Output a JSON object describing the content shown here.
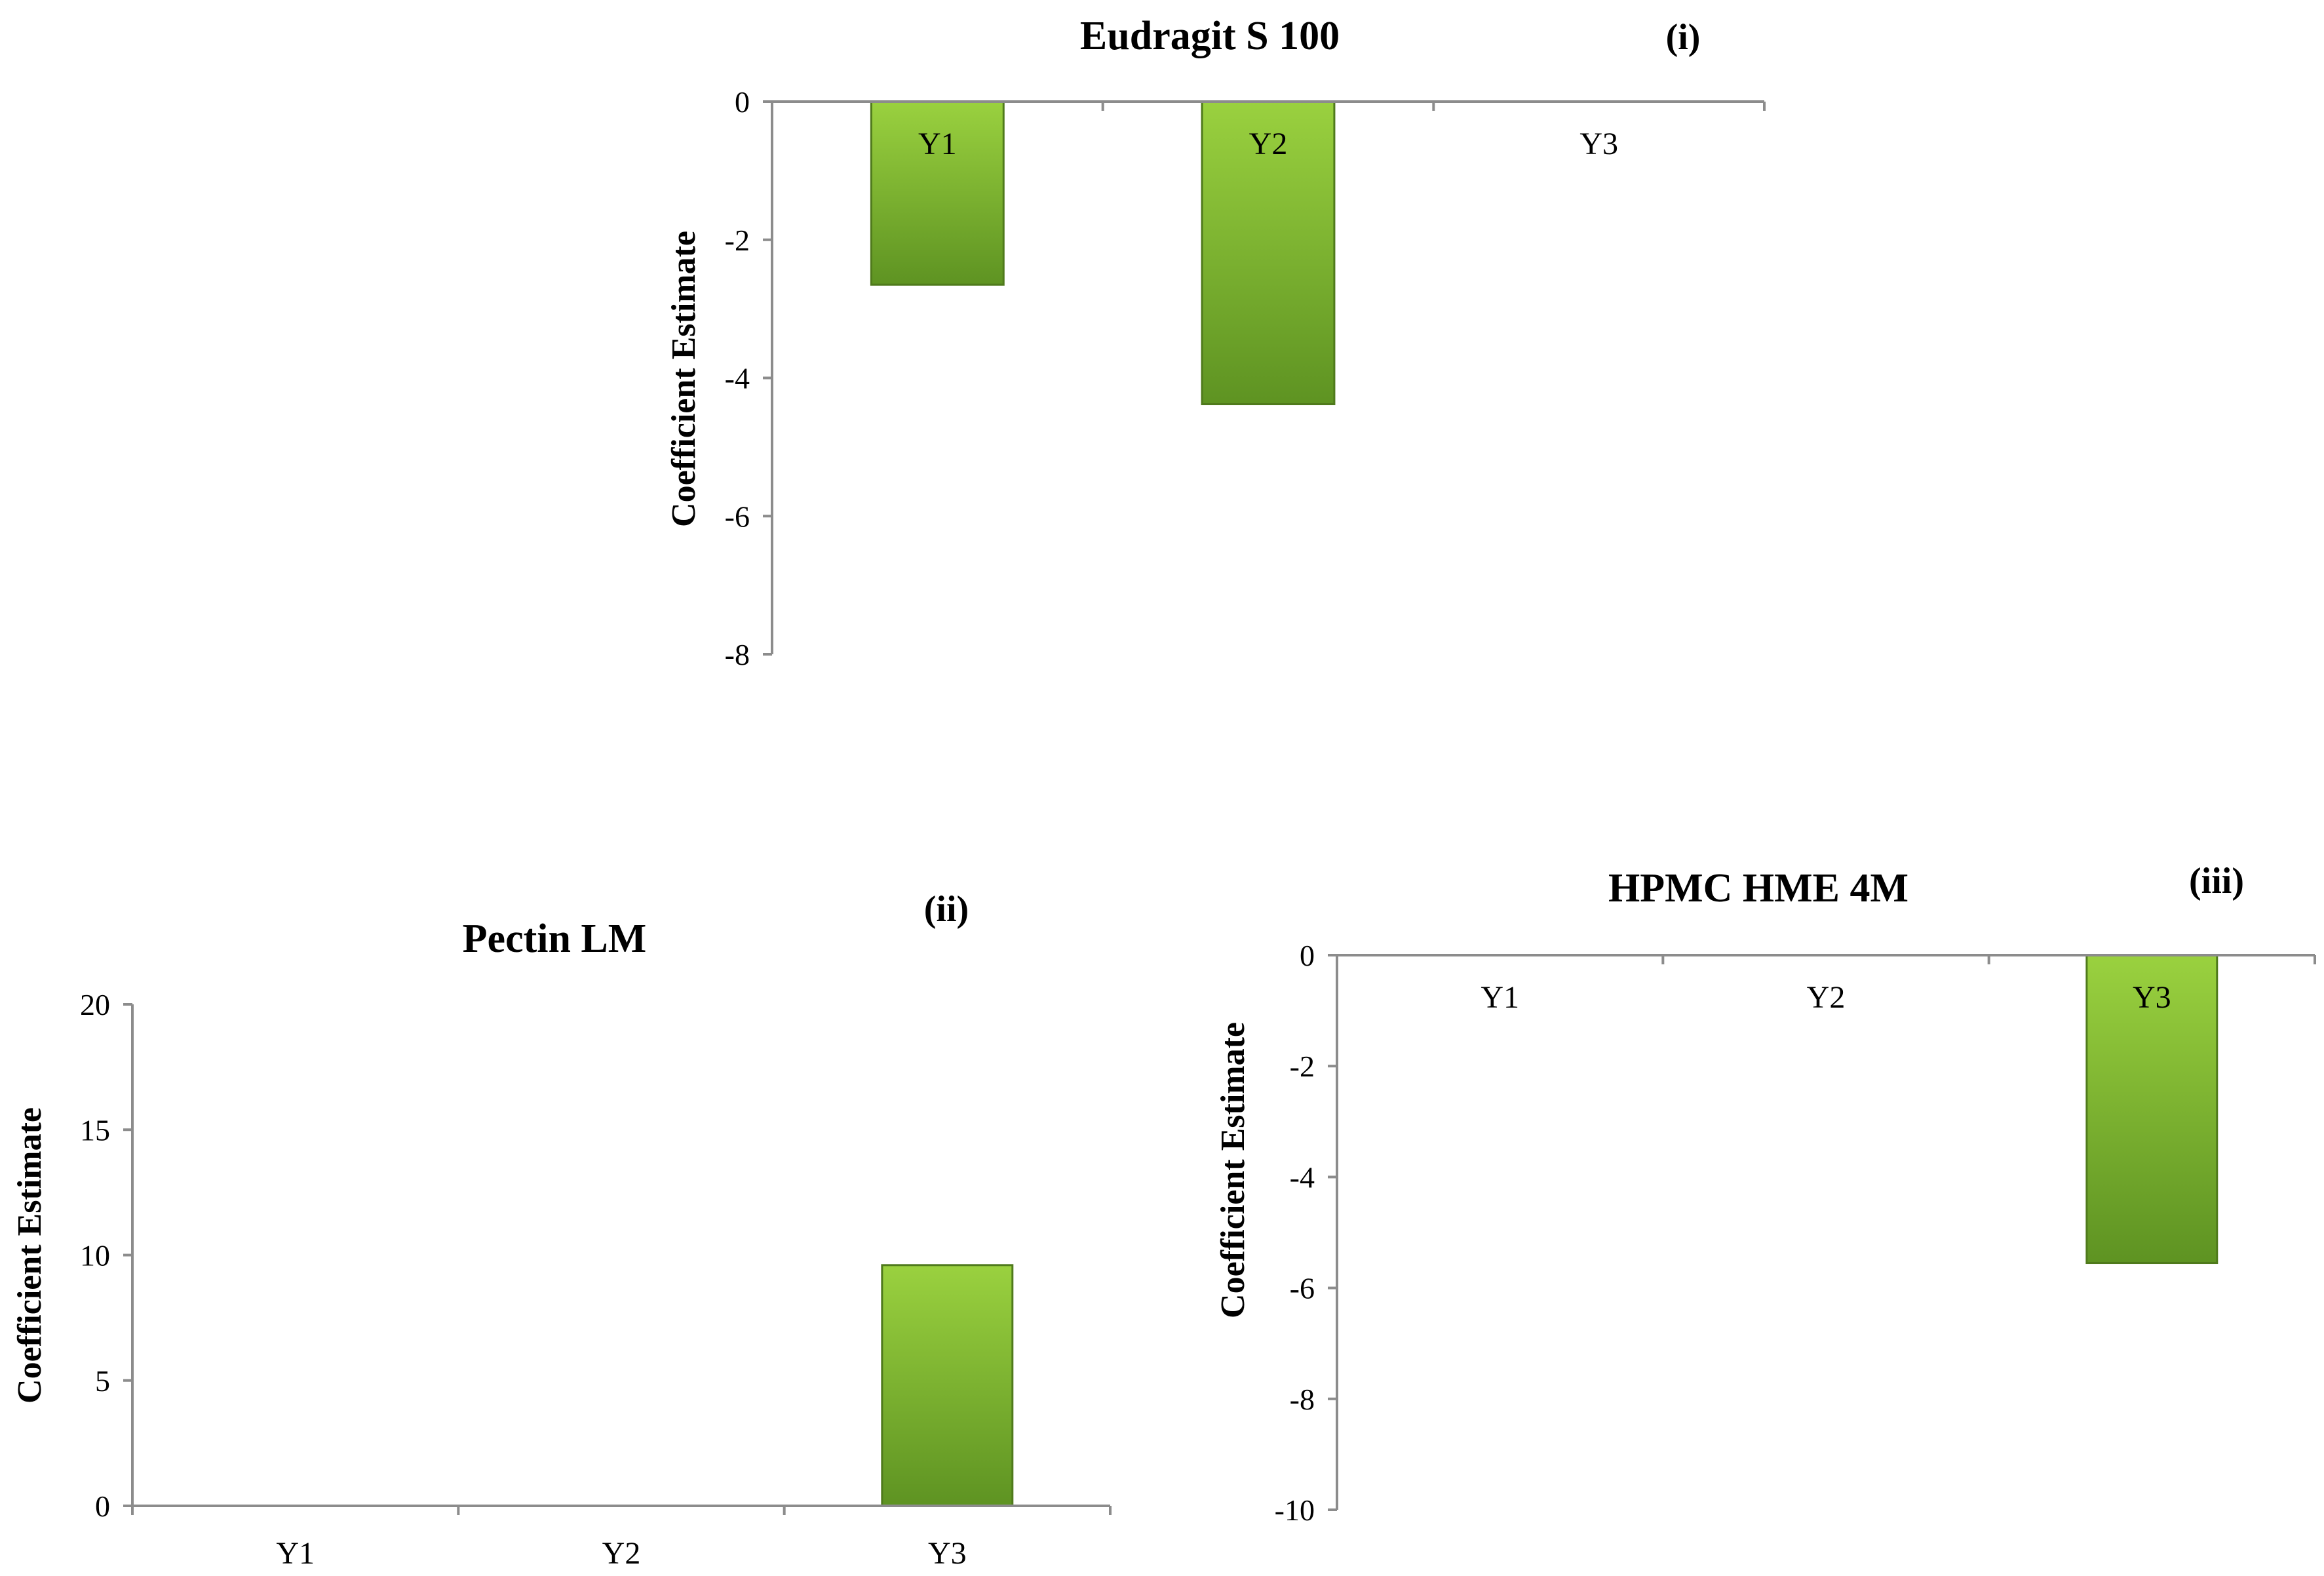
{
  "colors": {
    "bar_light": "#9ad13f",
    "bar_dark": "#5e9322",
    "axis": "#8c8c8c"
  },
  "chart_data": [
    {
      "type": "bar",
      "title": "Eudragit S 100",
      "panel_label": "(i)",
      "ylabel": "Coefficient  Estimate",
      "xlabel": "",
      "categories": [
        "Y1",
        "Y2",
        "Y3"
      ],
      "values": [
        -2.65,
        -4.38,
        0
      ],
      "ylim": [
        -8,
        0
      ],
      "yticks": [
        0,
        -2,
        -4,
        -6,
        -8
      ],
      "grid": false
    },
    {
      "type": "bar",
      "title": "Pectin LM",
      "panel_label": "(ii)",
      "ylabel": "Coefficient  Estimate",
      "xlabel": "",
      "categories": [
        "Y1",
        "Y2",
        "Y3"
      ],
      "values": [
        0,
        0,
        9.6
      ],
      "ylim": [
        0,
        20
      ],
      "yticks": [
        20,
        15,
        10,
        5,
        0
      ],
      "grid": false
    },
    {
      "type": "bar",
      "title": "HPMC HME 4M",
      "panel_label": "(iii)",
      "ylabel": "Coefficient  Estimate",
      "xlabel": "",
      "categories": [
        "Y1",
        "Y2",
        "Y3"
      ],
      "values": [
        0,
        0,
        -5.55
      ],
      "ylim": [
        -10,
        0
      ],
      "yticks": [
        0,
        -2,
        -4,
        -6,
        -8,
        -10
      ],
      "grid": false
    }
  ]
}
